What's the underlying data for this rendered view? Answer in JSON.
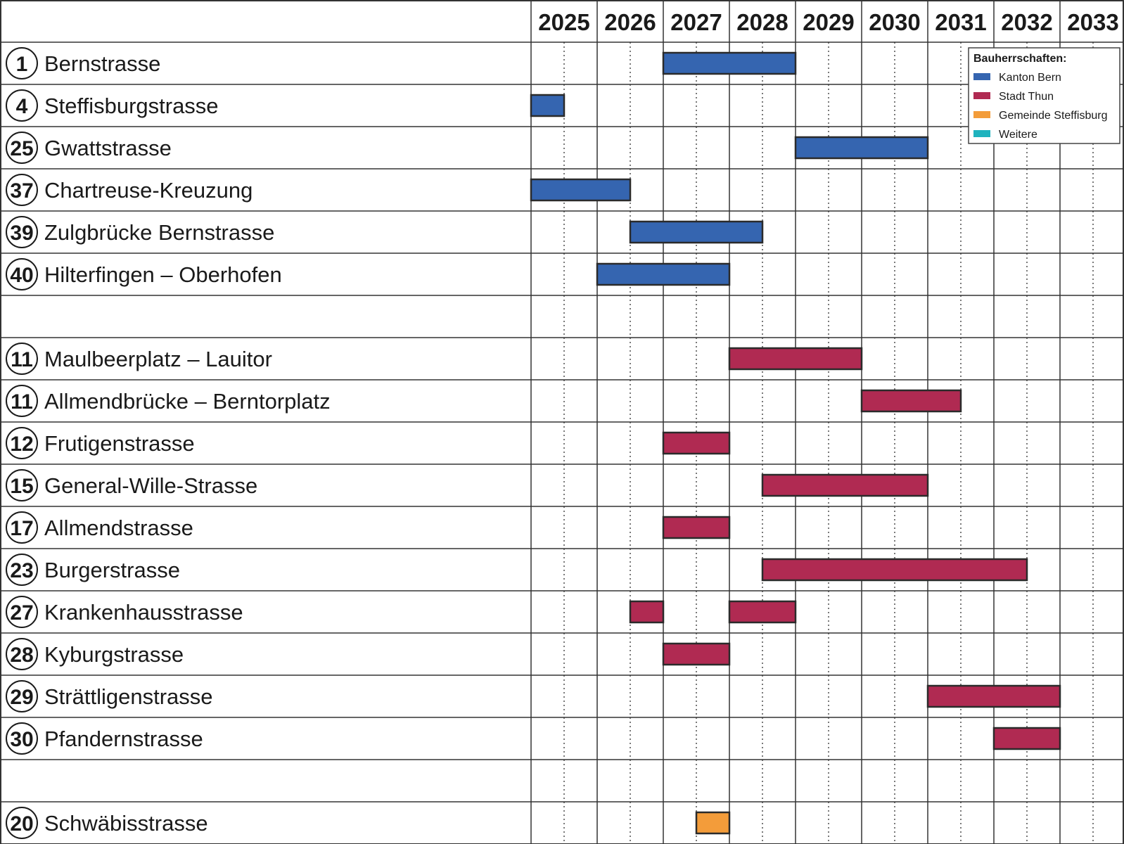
{
  "chart_data": {
    "type": "gantt",
    "years": [
      "2025",
      "2026",
      "2027",
      "2028",
      "2029",
      "2030",
      "2031",
      "2032",
      "2033"
    ],
    "x_range": [
      2025,
      2034
    ],
    "legend": {
      "title": "Bauherrschaften:",
      "placement": "top-right",
      "items": [
        {
          "key": "kanton",
          "label": "Kanton Bern",
          "color": "#3565b0"
        },
        {
          "key": "stadt",
          "label": "Stadt Thun",
          "color": "#b02a52"
        },
        {
          "key": "gemeinde",
          "label": "Gemeinde Steffisburg",
          "color": "#f39c3a"
        },
        {
          "key": "weitere",
          "label": "Weitere",
          "color": "#1fb3be"
        }
      ]
    },
    "rows": [
      {
        "num": "1",
        "label": "Bernstrasse",
        "bars": [
          {
            "start": 2027.0,
            "end": 2029.0,
            "owner": "kanton"
          }
        ]
      },
      {
        "num": "4",
        "label": "Steffisburgstrasse",
        "bars": [
          {
            "start": 2025.0,
            "end": 2025.5,
            "owner": "kanton"
          }
        ]
      },
      {
        "num": "25",
        "label": "Gwattstrasse",
        "bars": [
          {
            "start": 2029.0,
            "end": 2031.0,
            "owner": "kanton"
          }
        ]
      },
      {
        "num": "37",
        "label": "Chartreuse-Kreuzung",
        "bars": [
          {
            "start": 2025.0,
            "end": 2026.5,
            "owner": "kanton"
          }
        ]
      },
      {
        "num": "39",
        "label": "Zulgbrücke Bernstrasse",
        "bars": [
          {
            "start": 2026.5,
            "end": 2028.5,
            "owner": "kanton"
          }
        ]
      },
      {
        "num": "40",
        "label": "Hilterfingen – Oberhofen",
        "bars": [
          {
            "start": 2026.0,
            "end": 2028.0,
            "owner": "kanton"
          }
        ]
      },
      {
        "num": "",
        "label": "",
        "bars": []
      },
      {
        "num": "11",
        "label": "Maulbeerplatz – Lauitor",
        "bars": [
          {
            "start": 2028.0,
            "end": 2030.0,
            "owner": "stadt"
          }
        ]
      },
      {
        "num": "11",
        "label": "Allmendbrücke – Berntorplatz",
        "bars": [
          {
            "start": 2030.0,
            "end": 2031.5,
            "owner": "stadt"
          }
        ]
      },
      {
        "num": "12",
        "label": "Frutigenstrasse",
        "bars": [
          {
            "start": 2027.0,
            "end": 2028.0,
            "owner": "stadt"
          }
        ]
      },
      {
        "num": "15",
        "label": "General-Wille-Strasse",
        "bars": [
          {
            "start": 2028.5,
            "end": 2031.0,
            "owner": "stadt"
          }
        ]
      },
      {
        "num": "17",
        "label": "Allmendstrasse",
        "bars": [
          {
            "start": 2027.0,
            "end": 2028.0,
            "owner": "stadt"
          }
        ]
      },
      {
        "num": "23",
        "label": "Burgerstrasse",
        "bars": [
          {
            "start": 2028.5,
            "end": 2032.5,
            "owner": "stadt"
          }
        ]
      },
      {
        "num": "27",
        "label": "Krankenhausstrasse",
        "bars": [
          {
            "start": 2026.5,
            "end": 2027.0,
            "owner": "stadt"
          },
          {
            "start": 2028.0,
            "end": 2029.0,
            "owner": "stadt"
          }
        ]
      },
      {
        "num": "28",
        "label": "Kyburgstrasse",
        "bars": [
          {
            "start": 2027.0,
            "end": 2028.0,
            "owner": "stadt"
          }
        ]
      },
      {
        "num": "29",
        "label": "Strättligenstrasse",
        "bars": [
          {
            "start": 2031.0,
            "end": 2033.0,
            "owner": "stadt"
          }
        ]
      },
      {
        "num": "30",
        "label": "Pfandernstrasse",
        "bars": [
          {
            "start": 2032.0,
            "end": 2033.0,
            "owner": "stadt"
          }
        ]
      },
      {
        "num": "",
        "label": "",
        "bars": []
      },
      {
        "num": "20",
        "label": "Schwäbisstrasse",
        "bars": [
          {
            "start": 2027.5,
            "end": 2028.0,
            "owner": "gemeinde"
          }
        ]
      }
    ]
  }
}
